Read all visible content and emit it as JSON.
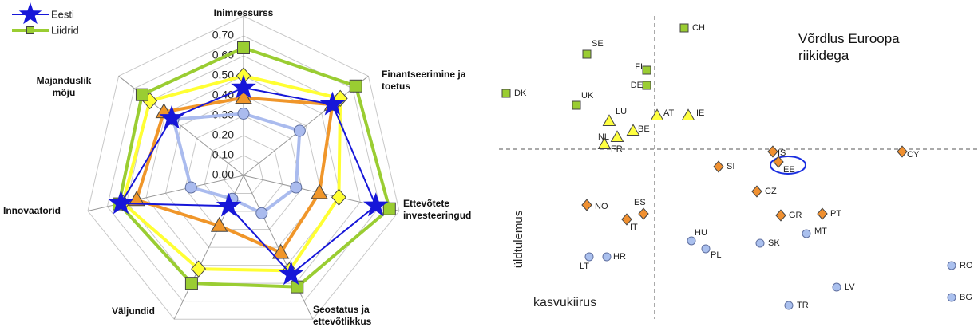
{
  "chart_data": [
    {
      "type": "radar",
      "categories": [
        "Inimressurss",
        "Finantseerimine ja toetus",
        "Ettevõtete investeeringud",
        "Seostatus ja ettevõtlikkus",
        "Väljundid",
        "Innovaatorid",
        "Majanduslik mõju"
      ],
      "ylim": [
        0,
        0.8
      ],
      "yticks": [
        {
          "value": 0,
          "label": "0.00"
        },
        {
          "value": 0.1,
          "label": "0.10"
        },
        {
          "value": 0.2,
          "label": "0.20"
        },
        {
          "value": 0.3,
          "label": "0.30"
        },
        {
          "value": 0.4,
          "label": "0.40"
        },
        {
          "value": 0.5,
          "label": "0.50"
        },
        {
          "value": 0.6,
          "label": "0.60"
        },
        {
          "value": 0.7,
          "label": "0.70"
        }
      ],
      "grid": true,
      "legend": "top-left",
      "series": [
        {
          "name": "Eesti",
          "color": "#1616d8",
          "marker": "star",
          "values": [
            0.44,
            0.57,
            0.68,
            0.55,
            0.17,
            0.63,
            0.46
          ]
        },
        {
          "name": "Liidrid",
          "color": "#9acd32",
          "marker": "square",
          "values": [
            0.64,
            0.72,
            0.75,
            0.62,
            0.6,
            0.64,
            0.65
          ]
        },
        {
          "color": "#ffff33",
          "marker": "diamond",
          "values": [
            0.5,
            0.62,
            0.49,
            0.53,
            0.52,
            0.62,
            0.6
          ]
        },
        {
          "color": "#f0962a",
          "marker": "triangle",
          "values": [
            0.39,
            0.57,
            0.39,
            0.43,
            0.28,
            0.55,
            0.51
          ]
        },
        {
          "color": "#aabbee",
          "marker": "circle",
          "values": [
            0.31,
            0.36,
            0.27,
            0.21,
            0.13,
            0.27,
            0.45
          ]
        }
      ]
    },
    {
      "type": "scatter",
      "title": "Võrdlus Euroopa riikidega",
      "ylabel": "üldtulemus",
      "xlabel": "kasvukiirus",
      "xlim": [
        -1.95,
        4.05
      ],
      "ylim": [
        -2.13,
        1.62
      ],
      "series": [
        {
          "color": "#9acd32",
          "marker": "square",
          "labels": [
            "CH",
            "SE",
            "FI",
            "DE",
            "DK",
            "UK"
          ],
          "x": [
            0.37,
            -0.85,
            -0.1,
            -0.1,
            -1.86,
            -0.98
          ],
          "values": [
            1.52,
            1.19,
            0.99,
            0.8,
            0.7,
            0.55
          ]
        },
        {
          "color": "#ffff40",
          "marker": "triangle",
          "labels": [
            "LU",
            "AT",
            "IE",
            "BE",
            "NL",
            "FR"
          ],
          "x": [
            -0.57,
            0.03,
            0.42,
            -0.27,
            -0.47,
            -0.63
          ],
          "values": [
            0.35,
            0.42,
            0.42,
            0.23,
            0.15,
            0.06
          ]
        },
        {
          "color": "#f09030",
          "marker": "diamond",
          "labels": [
            "IS",
            "CY",
            "EE",
            "SI",
            "CZ",
            "NO",
            "ES",
            "IT",
            "GR",
            "PT"
          ],
          "x": [
            1.48,
            3.1,
            1.55,
            0.8,
            1.28,
            -0.85,
            -0.14,
            -0.35,
            1.58,
            2.1
          ],
          "values": [
            -0.03,
            -0.03,
            -0.16,
            -0.22,
            -0.53,
            -0.7,
            -0.81,
            -0.88,
            -0.83,
            -0.81
          ]
        },
        {
          "color": "#aac0ee",
          "marker": "circle",
          "labels": [
            "HU",
            "PL",
            "SK",
            "MT",
            "LT",
            "HR",
            "RO",
            "LV",
            "BG",
            "TR"
          ],
          "x": [
            0.46,
            0.64,
            1.32,
            1.9,
            -0.82,
            -0.6,
            3.72,
            2.28,
            3.72,
            1.68
          ],
          "values": [
            -1.15,
            -1.25,
            -1.18,
            -1.06,
            -1.35,
            -1.35,
            -1.46,
            -1.73,
            -1.86,
            -1.96
          ]
        }
      ]
    }
  ]
}
